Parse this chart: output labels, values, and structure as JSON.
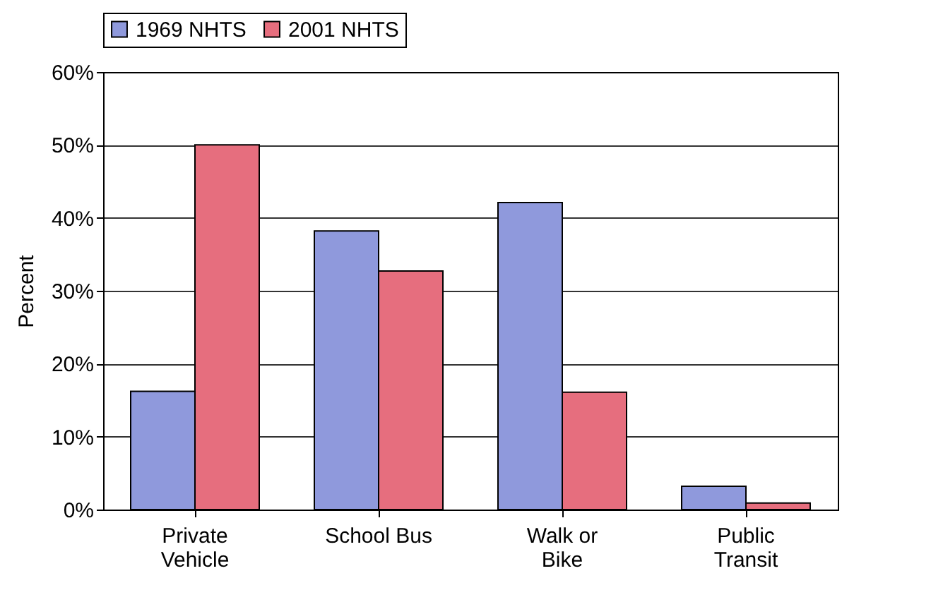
{
  "chart_data": {
    "type": "bar",
    "ylabel": "Percent",
    "categories": [
      "Private Vehicle",
      "School Bus",
      "Walk or Bike",
      "Public Transit"
    ],
    "series": [
      {
        "name": "1969 NHTS",
        "color": "#8f99dc",
        "values": [
          16.2,
          38.2,
          42.1,
          3.2
        ]
      },
      {
        "name": "2001 NHTS",
        "color": "#e66e7e",
        "values": [
          50,
          32.7,
          16.1,
          0.9
        ]
      }
    ],
    "ylim": [
      0,
      60
    ],
    "yticks": [
      {
        "value": 0,
        "label": "0%"
      },
      {
        "value": 10,
        "label": "10%"
      },
      {
        "value": 20,
        "label": "20%"
      },
      {
        "value": 30,
        "label": "30%"
      },
      {
        "value": 40,
        "label": "40%"
      },
      {
        "value": 50,
        "label": "50%"
      },
      {
        "value": 60,
        "label": "60%"
      }
    ],
    "grid": "y",
    "legend": "top"
  }
}
